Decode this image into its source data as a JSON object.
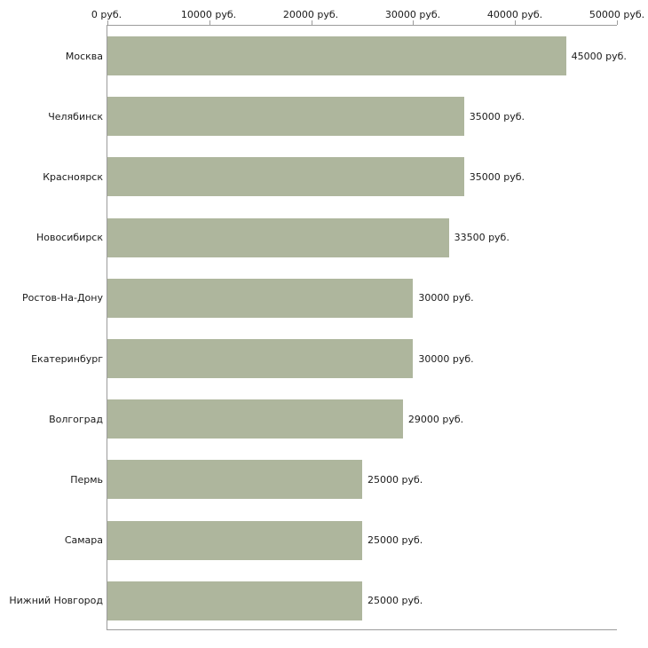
{
  "chart_data": {
    "type": "bar",
    "orientation": "horizontal",
    "title": "",
    "units": "руб.",
    "categories": [
      "Москва",
      "Челябинск",
      "Красноярск",
      "Новосибирск",
      "Ростов-На-Дону",
      "Екатеринбург",
      "Волгоград",
      "Пермь",
      "Самара",
      "Нижний Новгород"
    ],
    "values": [
      45000,
      35000,
      35000,
      33500,
      30000,
      30000,
      29000,
      25000,
      25000,
      25000
    ],
    "value_labels": [
      "45000 руб.",
      "35000 руб.",
      "35000 руб.",
      "33500 руб.",
      "30000 руб.",
      "30000 руб.",
      "29000 руб.",
      "25000 руб.",
      "25000 руб.",
      "25000 руб."
    ],
    "x_axis": {
      "position": "top",
      "min": 0,
      "max": 50000,
      "ticks": [
        0,
        10000,
        20000,
        30000,
        40000,
        50000
      ],
      "tick_labels": [
        "0 руб.",
        "10000 руб.",
        "20000 руб.",
        "30000 руб.",
        "40000 руб.",
        "50000 руб."
      ]
    },
    "grid": false,
    "legend": false,
    "bar_color": "#aeb69d",
    "axis_color": "#9c9c9c",
    "text_color": "#1a1a1a",
    "background_color": "#ffffff"
  }
}
